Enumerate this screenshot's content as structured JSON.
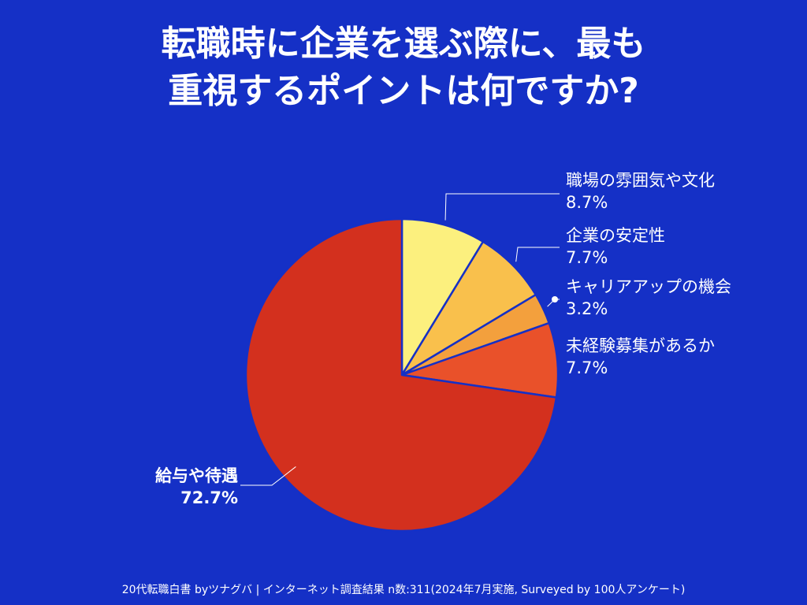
{
  "title_lines": [
    "転職時に企業を選ぶ際に、最も",
    "重視するポイントは何ですか?"
  ],
  "footer": "20代転職白書 byツナグバ | インターネット調査結果 n数:311(2024年7月実施, Surveyed by 100人アンケート)",
  "colors": {
    "background": "#1530c6",
    "slices": [
      "#fcf07e",
      "#f9c04c",
      "#f3a03d",
      "#e9512a",
      "#d3301e"
    ],
    "separator": "#1530c6"
  },
  "chart_data": {
    "type": "pie",
    "start": "12 o'clock, clockwise",
    "slices": [
      {
        "label": "職場の雰囲気や文化",
        "value": 8.7,
        "value_text": "8.7%"
      },
      {
        "label": "企業の安定性",
        "value": 7.7,
        "value_text": "7.7%"
      },
      {
        "label": "キャリアアップの機会",
        "value": 3.2,
        "value_text": "3.2%"
      },
      {
        "label": "未経験募集があるか",
        "value": 7.7,
        "value_text": "7.7%"
      },
      {
        "label": "給与や待遇",
        "value": 72.7,
        "value_text": "72.7%"
      }
    ]
  }
}
